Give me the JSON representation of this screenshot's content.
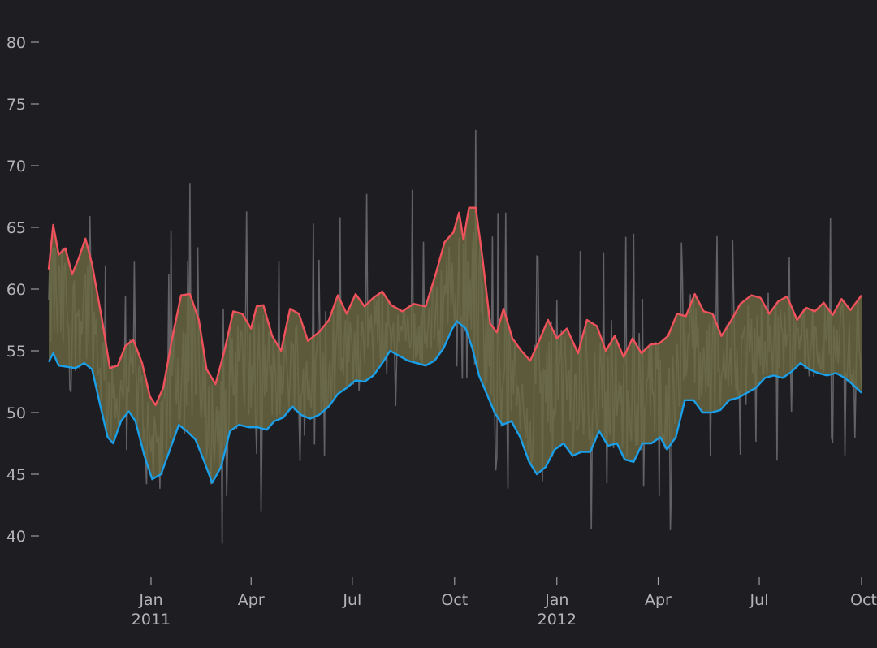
{
  "chart_data": {
    "type": "area",
    "title": "",
    "xlabel": "",
    "ylabel": "",
    "x_range": [
      "2010-10-01",
      "2012-10-01"
    ],
    "ylim": [
      37,
      82
    ],
    "grid": false,
    "y_ticks": [
      40,
      45,
      50,
      55,
      60,
      65,
      70,
      75,
      80
    ],
    "x_ticks": [
      {
        "date": "2011-01-01",
        "label": "Jan",
        "sub": "2011"
      },
      {
        "date": "2011-04-01",
        "label": "Apr",
        "sub": ""
      },
      {
        "date": "2011-07-01",
        "label": "Jul",
        "sub": ""
      },
      {
        "date": "2011-10-01",
        "label": "Oct",
        "sub": ""
      },
      {
        "date": "2012-01-01",
        "label": "Jan",
        "sub": "2012"
      },
      {
        "date": "2012-04-01",
        "label": "Apr",
        "sub": ""
      },
      {
        "date": "2012-07-01",
        "label": "Jul",
        "sub": ""
      },
      {
        "date": "2012-10-01",
        "label": "Oct",
        "sub": ""
      }
    ],
    "colors": {
      "background": "#1e1d22",
      "upper_line": "#f0525c",
      "lower_line": "#1a9fe8",
      "band_fill": "#6b6a42",
      "raw_series": "#6e6e72",
      "axis_text": "#b4b4b8"
    },
    "series": [
      {
        "role": "upper",
        "points": [
          [
            "2010-10-01",
            61.6
          ],
          [
            "2010-10-05",
            65.2
          ],
          [
            "2010-10-10",
            62.8
          ],
          [
            "2010-10-16",
            63.3
          ],
          [
            "2010-10-22",
            61.2
          ],
          [
            "2010-10-28",
            62.5
          ],
          [
            "2010-11-03",
            64.1
          ],
          [
            "2010-11-09",
            62.0
          ],
          [
            "2010-11-18",
            57.5
          ],
          [
            "2010-11-25",
            53.6
          ],
          [
            "2010-12-02",
            53.8
          ],
          [
            "2010-12-09",
            55.4
          ],
          [
            "2010-12-16",
            55.9
          ],
          [
            "2010-12-24",
            54.0
          ],
          [
            "2010-12-31",
            51.3
          ],
          [
            "2011-01-05",
            50.6
          ],
          [
            "2011-01-12",
            52.0
          ],
          [
            "2011-01-20",
            56.0
          ],
          [
            "2011-01-28",
            59.5
          ],
          [
            "2011-02-05",
            59.6
          ],
          [
            "2011-02-13",
            57.5
          ],
          [
            "2011-02-20",
            53.5
          ],
          [
            "2011-02-28",
            52.3
          ],
          [
            "2011-03-08",
            55.0
          ],
          [
            "2011-03-16",
            58.2
          ],
          [
            "2011-03-24",
            58.0
          ],
          [
            "2011-04-01",
            56.8
          ],
          [
            "2011-04-06",
            58.6
          ],
          [
            "2011-04-12",
            58.7
          ],
          [
            "2011-04-20",
            56.2
          ],
          [
            "2011-04-28",
            55.0
          ],
          [
            "2011-05-06",
            58.4
          ],
          [
            "2011-05-14",
            58.0
          ],
          [
            "2011-05-22",
            55.8
          ],
          [
            "2011-06-01",
            56.5
          ],
          [
            "2011-06-10",
            57.5
          ],
          [
            "2011-06-18",
            59.5
          ],
          [
            "2011-06-26",
            58.0
          ],
          [
            "2011-07-04",
            59.6
          ],
          [
            "2011-07-12",
            58.6
          ],
          [
            "2011-07-20",
            59.3
          ],
          [
            "2011-07-28",
            59.8
          ],
          [
            "2011-08-05",
            58.7
          ],
          [
            "2011-08-15",
            58.2
          ],
          [
            "2011-08-25",
            58.8
          ],
          [
            "2011-09-05",
            58.6
          ],
          [
            "2011-09-14",
            61.2
          ],
          [
            "2011-09-22",
            63.8
          ],
          [
            "2011-09-30",
            64.6
          ],
          [
            "2011-10-05",
            66.2
          ],
          [
            "2011-10-09",
            64.0
          ],
          [
            "2011-10-14",
            66.6
          ],
          [
            "2011-10-20",
            66.6
          ],
          [
            "2011-10-26",
            62.6
          ],
          [
            "2011-11-02",
            57.2
          ],
          [
            "2011-11-08",
            56.5
          ],
          [
            "2011-11-14",
            58.4
          ],
          [
            "2011-11-22",
            56.0
          ],
          [
            "2011-11-30",
            55.0
          ],
          [
            "2011-12-08",
            54.2
          ],
          [
            "2011-12-16",
            55.8
          ],
          [
            "2011-12-24",
            57.5
          ],
          [
            "2012-01-01",
            56.0
          ],
          [
            "2012-01-10",
            56.8
          ],
          [
            "2012-01-20",
            54.8
          ],
          [
            "2012-01-28",
            57.5
          ],
          [
            "2012-02-06",
            57.0
          ],
          [
            "2012-02-14",
            55.0
          ],
          [
            "2012-02-22",
            56.2
          ],
          [
            "2012-03-01",
            54.5
          ],
          [
            "2012-03-09",
            56.0
          ],
          [
            "2012-03-17",
            54.8
          ],
          [
            "2012-03-25",
            55.5
          ],
          [
            "2012-04-02",
            55.6
          ],
          [
            "2012-04-10",
            56.2
          ],
          [
            "2012-04-18",
            58.0
          ],
          [
            "2012-04-26",
            57.8
          ],
          [
            "2012-05-04",
            59.6
          ],
          [
            "2012-05-12",
            58.2
          ],
          [
            "2012-05-20",
            58.0
          ],
          [
            "2012-05-28",
            56.2
          ],
          [
            "2012-06-06",
            57.5
          ],
          [
            "2012-06-14",
            58.8
          ],
          [
            "2012-06-24",
            59.5
          ],
          [
            "2012-07-02",
            59.3
          ],
          [
            "2012-07-10",
            58.0
          ],
          [
            "2012-07-18",
            59.0
          ],
          [
            "2012-07-26",
            59.4
          ],
          [
            "2012-08-04",
            57.5
          ],
          [
            "2012-08-12",
            58.5
          ],
          [
            "2012-08-20",
            58.2
          ],
          [
            "2012-08-28",
            58.9
          ],
          [
            "2012-09-05",
            57.9
          ],
          [
            "2012-09-13",
            59.2
          ],
          [
            "2012-09-21",
            58.3
          ],
          [
            "2012-10-01",
            59.5
          ]
        ]
      },
      {
        "role": "lower",
        "points": [
          [
            "2010-10-01",
            54.1
          ],
          [
            "2010-10-05",
            54.8
          ],
          [
            "2010-10-10",
            53.8
          ],
          [
            "2010-10-18",
            53.7
          ],
          [
            "2010-10-25",
            53.6
          ],
          [
            "2010-11-02",
            54.0
          ],
          [
            "2010-11-09",
            53.5
          ],
          [
            "2010-11-17",
            50.3
          ],
          [
            "2010-11-23",
            48.0
          ],
          [
            "2010-11-28",
            47.5
          ],
          [
            "2010-12-05",
            49.3
          ],
          [
            "2010-12-12",
            50.1
          ],
          [
            "2010-12-18",
            49.3
          ],
          [
            "2010-12-26",
            46.5
          ],
          [
            "2011-01-02",
            44.6
          ],
          [
            "2011-01-10",
            45.0
          ],
          [
            "2011-01-18",
            47.0
          ],
          [
            "2011-01-26",
            49.0
          ],
          [
            "2011-02-02",
            48.5
          ],
          [
            "2011-02-10",
            47.8
          ],
          [
            "2011-02-18",
            46.0
          ],
          [
            "2011-02-25",
            44.3
          ],
          [
            "2011-03-05",
            45.6
          ],
          [
            "2011-03-13",
            48.5
          ],
          [
            "2011-03-21",
            49.0
          ],
          [
            "2011-03-30",
            48.8
          ],
          [
            "2011-04-07",
            48.8
          ],
          [
            "2011-04-15",
            48.6
          ],
          [
            "2011-04-22",
            49.3
          ],
          [
            "2011-04-30",
            49.6
          ],
          [
            "2011-05-08",
            50.5
          ],
          [
            "2011-05-16",
            49.8
          ],
          [
            "2011-05-24",
            49.5
          ],
          [
            "2011-06-01",
            49.8
          ],
          [
            "2011-06-10",
            50.5
          ],
          [
            "2011-06-18",
            51.5
          ],
          [
            "2011-06-26",
            52.0
          ],
          [
            "2011-07-04",
            52.6
          ],
          [
            "2011-07-12",
            52.5
          ],
          [
            "2011-07-20",
            53.0
          ],
          [
            "2011-07-28",
            54.0
          ],
          [
            "2011-08-04",
            55.0
          ],
          [
            "2011-08-12",
            54.6
          ],
          [
            "2011-08-20",
            54.2
          ],
          [
            "2011-08-28",
            54.0
          ],
          [
            "2011-09-05",
            53.8
          ],
          [
            "2011-09-13",
            54.2
          ],
          [
            "2011-09-21",
            55.2
          ],
          [
            "2011-09-29",
            56.8
          ],
          [
            "2011-10-03",
            57.4
          ],
          [
            "2011-10-11",
            56.8
          ],
          [
            "2011-10-17",
            55.2
          ],
          [
            "2011-10-23",
            53.0
          ],
          [
            "2011-10-30",
            51.5
          ],
          [
            "2011-11-06",
            50.0
          ],
          [
            "2011-11-13",
            49.0
          ],
          [
            "2011-11-21",
            49.3
          ],
          [
            "2011-11-29",
            48.0
          ],
          [
            "2011-12-07",
            46.0
          ],
          [
            "2011-12-14",
            45.0
          ],
          [
            "2011-12-22",
            45.6
          ],
          [
            "2011-12-30",
            47.0
          ],
          [
            "2012-01-07",
            47.5
          ],
          [
            "2012-01-15",
            46.5
          ],
          [
            "2012-01-23",
            46.8
          ],
          [
            "2012-01-31",
            46.8
          ],
          [
            "2012-02-08",
            48.5
          ],
          [
            "2012-02-16",
            47.3
          ],
          [
            "2012-02-24",
            47.5
          ],
          [
            "2012-03-02",
            46.2
          ],
          [
            "2012-03-10",
            46.0
          ],
          [
            "2012-03-18",
            47.5
          ],
          [
            "2012-03-26",
            47.5
          ],
          [
            "2012-04-03",
            48.0
          ],
          [
            "2012-04-09",
            47.0
          ],
          [
            "2012-04-17",
            48.0
          ],
          [
            "2012-04-25",
            51.0
          ],
          [
            "2012-05-03",
            51.0
          ],
          [
            "2012-05-11",
            50.0
          ],
          [
            "2012-05-19",
            50.0
          ],
          [
            "2012-05-27",
            50.2
          ],
          [
            "2012-06-04",
            51.0
          ],
          [
            "2012-06-12",
            51.2
          ],
          [
            "2012-06-20",
            51.6
          ],
          [
            "2012-06-28",
            52.0
          ],
          [
            "2012-07-06",
            52.8
          ],
          [
            "2012-07-14",
            53.0
          ],
          [
            "2012-07-22",
            52.8
          ],
          [
            "2012-07-30",
            53.3
          ],
          [
            "2012-08-07",
            54.0
          ],
          [
            "2012-08-15",
            53.5
          ],
          [
            "2012-08-23",
            53.2
          ],
          [
            "2012-08-31",
            53.0
          ],
          [
            "2012-09-08",
            53.2
          ],
          [
            "2012-09-16",
            52.8
          ],
          [
            "2012-09-24",
            52.2
          ],
          [
            "2012-10-01",
            51.6
          ]
        ]
      }
    ]
  }
}
